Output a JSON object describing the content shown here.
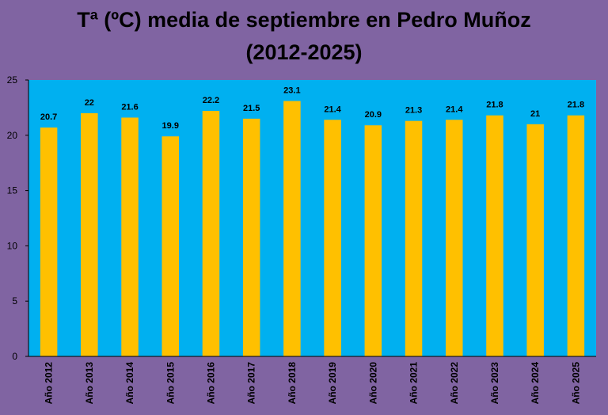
{
  "chart_data": {
    "type": "bar",
    "title_lines": [
      "Tª (ºC) media de septiembre en Pedro Muñoz",
      "(2012-2025)"
    ],
    "categories": [
      "Año 2012",
      "Año 2013",
      "Año 2014",
      "Año 2015",
      "Año 2016",
      "Año 2017",
      "Año 2018",
      "Año 2019",
      "Año 2020",
      "Año 2021",
      "Año 2022",
      "Año 2023",
      "Año 2024",
      "Año 2025"
    ],
    "values": [
      20.7,
      22,
      21.6,
      19.9,
      22.2,
      21.5,
      23.1,
      21.4,
      20.9,
      21.3,
      21.4,
      21.8,
      21,
      21.8
    ],
    "value_labels": [
      "20.7",
      "22",
      "21.6",
      "19.9",
      "22.2",
      "21.5",
      "23.1",
      "21.4",
      "20.9",
      "21.3",
      "21.4",
      "21.8",
      "21",
      "21.8"
    ],
    "ylim": [
      0,
      25
    ],
    "yticks": [
      "0",
      "5",
      "10",
      "15",
      "20",
      "25"
    ],
    "xlabel": "",
    "ylabel": "",
    "grid": false,
    "legend": "none",
    "colors": {
      "background": "#8064a2",
      "plot_area": "#00b0f0",
      "bar": "#ffc000"
    }
  }
}
